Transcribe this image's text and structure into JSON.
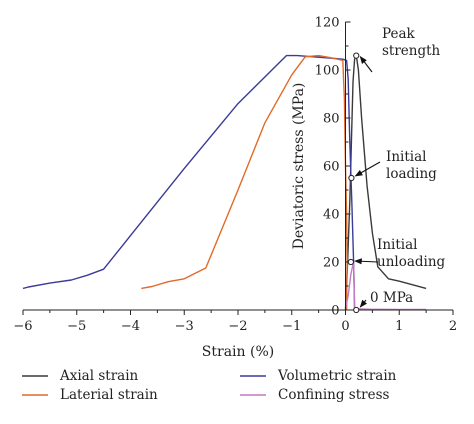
{
  "chart_data": {
    "type": "line",
    "xlabel": "Strain (%)",
    "ylabel": "Deviatoric stress (MPa)",
    "xlim": [
      -6,
      2
    ],
    "ylim": [
      0,
      120
    ],
    "xticks": [
      -6,
      -5,
      -4,
      -3,
      -2,
      -1,
      0,
      1,
      2
    ],
    "yticks": [
      0,
      20,
      40,
      60,
      80,
      100,
      120
    ],
    "grid": false,
    "legend_position": "bottom",
    "series": [
      {
        "name": "Axial strain",
        "color": "#3a3a3a",
        "points": [
          [
            0,
            0
          ],
          [
            0.04,
            20
          ],
          [
            0.08,
            45
          ],
          [
            0.11,
            70
          ],
          [
            0.14,
            95
          ],
          [
            0.17,
            104.5
          ],
          [
            0.2,
            106
          ],
          [
            0.24,
            100
          ],
          [
            0.3,
            80
          ],
          [
            0.4,
            52
          ],
          [
            0.5,
            32
          ],
          [
            0.6,
            18
          ],
          [
            0.8,
            13
          ],
          [
            1.0,
            12
          ],
          [
            1.25,
            10.5
          ],
          [
            1.5,
            9
          ]
        ]
      },
      {
        "name": "Volumetric strain",
        "color": "#3b3b9a",
        "points": [
          [
            -6.0,
            9
          ],
          [
            -5.9,
            9.6
          ],
          [
            -5.5,
            11.2
          ],
          [
            -5.1,
            12.5
          ],
          [
            -4.8,
            14.5
          ],
          [
            -4.5,
            17
          ],
          [
            -4.0,
            31
          ],
          [
            -3.0,
            59
          ],
          [
            -2.0,
            86
          ],
          [
            -1.1,
            106
          ],
          [
            -0.9,
            106
          ],
          [
            -0.6,
            105.5
          ],
          [
            -0.3,
            105
          ],
          [
            -0.05,
            104.5
          ],
          [
            0.02,
            104
          ],
          [
            0.05,
            96
          ],
          [
            0.08,
            70
          ],
          [
            0.12,
            44
          ],
          [
            0.15,
            20
          ],
          [
            0.17,
            0
          ]
        ]
      },
      {
        "name": "Laterial strain",
        "color": "#e26a28",
        "points": [
          [
            -3.8,
            9
          ],
          [
            -3.6,
            9.8
          ],
          [
            -3.3,
            11.8
          ],
          [
            -3.0,
            13
          ],
          [
            -2.6,
            17.5
          ],
          [
            -2.0,
            50
          ],
          [
            -1.5,
            78
          ],
          [
            -1.0,
            98
          ],
          [
            -0.75,
            105.5
          ],
          [
            -0.5,
            106
          ],
          [
            -0.25,
            105
          ],
          [
            -0.05,
            104
          ],
          [
            -0.02,
            88
          ],
          [
            0,
            60
          ],
          [
            0.02,
            40
          ],
          [
            0.03,
            20
          ],
          [
            0.02,
            0
          ]
        ]
      },
      {
        "name": "Confining stress",
        "color": "#c27ac2",
        "points": [
          [
            0,
            1
          ],
          [
            0.05,
            6
          ],
          [
            0.1,
            15
          ],
          [
            0.15,
            20
          ],
          [
            0.16,
            12
          ],
          [
            0.17,
            1
          ],
          [
            0.2,
            0.5
          ],
          [
            0.5,
            0.3
          ],
          [
            1.0,
            0.2
          ],
          [
            1.5,
            0.2
          ]
        ]
      }
    ],
    "markers": [
      {
        "x": 0.2,
        "y": 106
      },
      {
        "x": 0.11,
        "y": 55
      },
      {
        "x": 0.1,
        "y": 20
      },
      {
        "x": 0.2,
        "y": 0
      }
    ],
    "annotations": [
      {
        "lines": [
          "Peak",
          "strength"
        ],
        "x": 0.2,
        "y": 106
      },
      {
        "lines": [
          "Initial",
          "loading"
        ],
        "x": 0.11,
        "y": 55
      },
      {
        "lines": [
          "Initial",
          "unloading"
        ],
        "x": 0.1,
        "y": 20
      },
      {
        "lines": [
          "0 MPa"
        ],
        "x": 0.2,
        "y": 0
      }
    ]
  },
  "legend": [
    {
      "label": "Axial strain",
      "color": "#3a3a3a"
    },
    {
      "label": "Volumetric strain",
      "color": "#3b3b9a"
    },
    {
      "label": "Laterial strain",
      "color": "#e26a28"
    },
    {
      "label": "Confining stress",
      "color": "#c27ac2"
    }
  ]
}
